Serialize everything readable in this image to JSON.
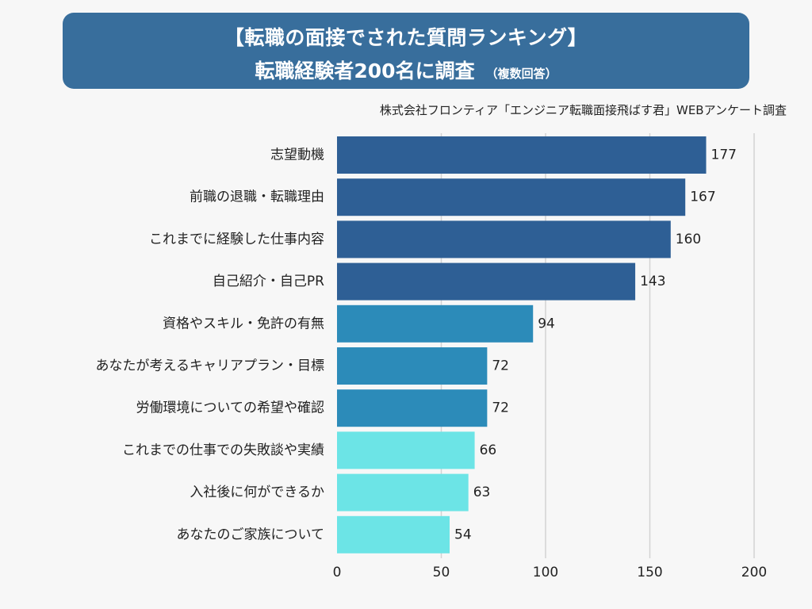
{
  "header": {
    "title_line1": "【転職の面接でされた質問ランキング】",
    "title_line2": "転職経験者200名に調査",
    "title_note": "（複数回答）",
    "source": "株式会社フロンティア「エンジニア転職面接飛ばす君」WEBアンケート調査"
  },
  "colors": {
    "title_bg": "#386e9c",
    "bar_dark": "#2e5f95",
    "bar_mid": "#2c8bb9",
    "bar_light": "#6ce4e6",
    "grid": "#d3d3d3",
    "text": "#222222"
  },
  "chart_data": {
    "type": "bar",
    "orientation": "horizontal",
    "categories": [
      "志望動機",
      "前職の退職・転職理由",
      "これまでに経験した仕事内容",
      "自己紹介・自己PR",
      "資格やスキル・免許の有無",
      "あなたが考えるキャリアプラン・目標",
      "労働環境についての希望や確認",
      "これまでの仕事での失敗談や実績",
      "入社後に何ができるか",
      "あなたのご家族について"
    ],
    "values": [
      177,
      167,
      160,
      143,
      94,
      72,
      72,
      66,
      63,
      54
    ],
    "bar_color_groups": [
      "dark",
      "dark",
      "dark",
      "dark",
      "mid",
      "mid",
      "mid",
      "light",
      "light",
      "light"
    ],
    "xlim": [
      0,
      200
    ],
    "xticks": [
      0,
      50,
      100,
      150,
      200
    ],
    "grid": true,
    "data_labels": true
  }
}
